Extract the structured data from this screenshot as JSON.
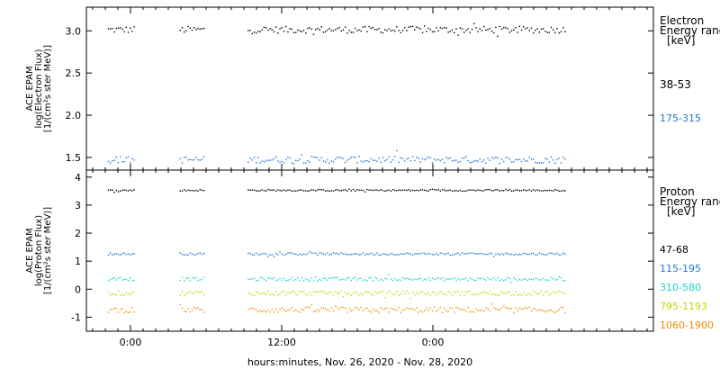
{
  "chart_data": [
    {
      "type": "scatter",
      "panel": "electron",
      "ylabel_lines": [
        "ACE EPAM",
        "log(Electron Flux)",
        "[1/(cm²s ster MeV)]"
      ],
      "ylim": [
        1.35,
        3.28
      ],
      "yticks": [
        {
          "value": 1.5,
          "label": "1.5"
        },
        {
          "value": 2.0,
          "label": "2.0"
        },
        {
          "value": 2.5,
          "label": "2.5"
        },
        {
          "value": 3.0,
          "label": "3.0"
        }
      ],
      "legend_title_lines": [
        "Electron",
        "Energy ranges",
        "[keV]"
      ],
      "series": [
        {
          "name": "38-53",
          "color": "#000000",
          "level": 3.02,
          "spread": 0.04
        },
        {
          "name": "175-315",
          "color": "#1f77d0",
          "level": 1.48,
          "spread": 0.04
        }
      ]
    },
    {
      "type": "scatter",
      "panel": "proton",
      "ylabel_lines": [
        "ACE EPAM",
        "log(Proton Flux)",
        "[1/(cm²s ster MeV)]"
      ],
      "ylim": [
        -1.5,
        4.25
      ],
      "yticks": [
        {
          "value": -1,
          "label": "-1"
        },
        {
          "value": 0,
          "label": "0"
        },
        {
          "value": 1,
          "label": "1"
        },
        {
          "value": 2,
          "label": "2"
        },
        {
          "value": 3,
          "label": "3"
        },
        {
          "value": 4,
          "label": "4"
        }
      ],
      "legend_title_lines": [
        "Proton",
        "Energy ranges",
        "[keV]"
      ],
      "series": [
        {
          "name": "47-68",
          "color": "#000000",
          "level": 3.55,
          "spread": 0.03
        },
        {
          "name": "115-195",
          "color": "#1f77d0",
          "level": 1.28,
          "spread": 0.04
        },
        {
          "name": "310-580",
          "color": "#17d6cc",
          "level": 0.38,
          "spread": 0.06
        },
        {
          "name": "795-1193",
          "color": "#c8d400",
          "level": -0.12,
          "spread": 0.08
        },
        {
          "name": "1060-1900",
          "color": "#f08c00",
          "level": -0.72,
          "spread": 0.1
        }
      ]
    }
  ],
  "x_axis": {
    "label": "hours:minutes, Nov. 26, 2020 - Nov. 28, 2020",
    "range_hours": [
      -3.5,
      41.5
    ],
    "ticks": [
      {
        "hour": 0,
        "label": "0:00"
      },
      {
        "hour": 12,
        "label": "12:00"
      },
      {
        "hour": 24,
        "label": "0:00"
      }
    ],
    "minor_step_hours": 1,
    "data_segments_hours": [
      [
        -1.8,
        0.3
      ],
      [
        3.9,
        5.9
      ],
      [
        9.3,
        34.6
      ]
    ]
  },
  "colors": {
    "background": "#ffffff",
    "axes": "#000000"
  }
}
